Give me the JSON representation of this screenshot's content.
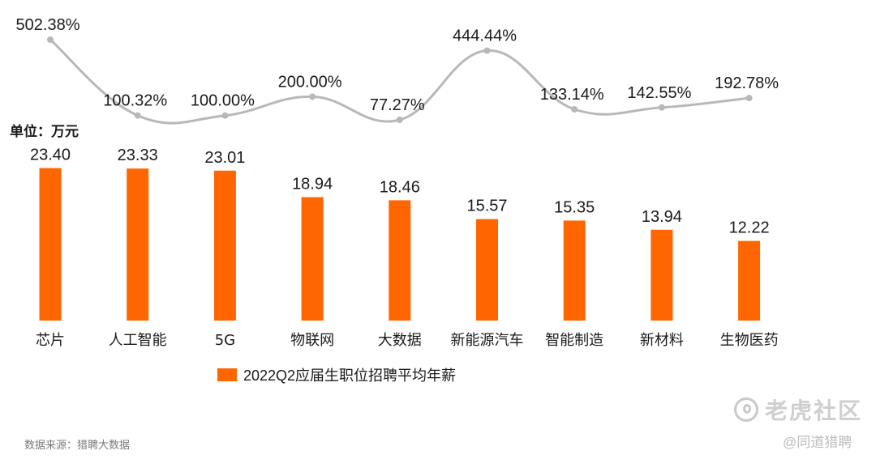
{
  "chart_data": {
    "type": "bar",
    "unit_label": "单位：万元",
    "categories": [
      "芯片",
      "人工智能",
      "5G",
      "物联网",
      "大数据",
      "新能源汽车",
      "智能制造",
      "新材料",
      "生物医药"
    ],
    "series": [
      {
        "name": "2022Q2应届生职位招聘平均年薪",
        "type": "bar",
        "color": "#ff6600",
        "values": [
          23.4,
          23.33,
          23.01,
          18.94,
          18.46,
          15.57,
          15.35,
          13.94,
          12.22
        ],
        "labels": [
          "23.40",
          "23.33",
          "23.01",
          "18.94",
          "18.46",
          "15.57",
          "15.35",
          "13.94",
          "12.22"
        ]
      },
      {
        "type": "line",
        "color": "#b8b8b8",
        "values": [
          502.38,
          100.32,
          100.0,
          200.0,
          77.27,
          444.44,
          133.14,
          142.55,
          192.78
        ],
        "labels": [
          "502.38%",
          "100.32%",
          "100.00%",
          "200.00%",
          "77.27%",
          "444.44%",
          "133.14%",
          "142.55%",
          "192.78%"
        ]
      }
    ],
    "legend": {
      "position": "bottom",
      "text": "2022Q2应届生职位招聘平均年薪"
    },
    "grid": false
  },
  "source": "数据来源：猎聘大数据",
  "watermark": {
    "text": "老虎社区",
    "icon": "tiger-logo-icon",
    "sub": "@同道猎聘"
  }
}
